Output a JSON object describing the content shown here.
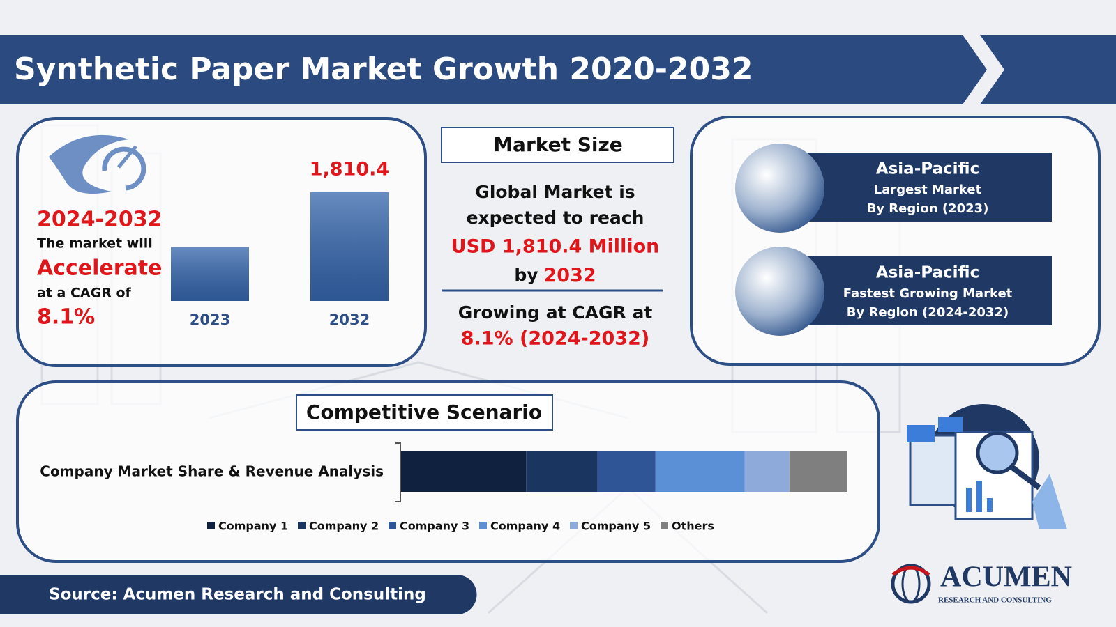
{
  "header": {
    "title": "Synthetic Paper Market Growth 2020-2032"
  },
  "growth_panel": {
    "period": "2024-2032",
    "line1": "The market will",
    "highlight": "Accelerate",
    "line2": "at a CAGR of",
    "cagr": "8.1%"
  },
  "market_size": {
    "heading": "Market Size",
    "line1": "Global Market is",
    "line2": "expected to reach",
    "amount": "USD 1,810.4 Million",
    "by": "by",
    "year": "2032",
    "line3": "Growing at CAGR at",
    "cagr": "8.1% (2024-2032)"
  },
  "regions": [
    {
      "name": "Asia-Pacific",
      "line1": "Largest Market",
      "line2": "By Region (2023)"
    },
    {
      "name": "Asia-Pacific",
      "line1": "Fastest Growing Market",
      "line2": "By Region (2024-2032)"
    }
  ],
  "competitive": {
    "heading": "Competitive Scenario"
  },
  "source": "Source: Acumen Research and Consulting",
  "logo": {
    "name": "ACUMEN",
    "tagline": "RESEARCH AND CONSULTING"
  },
  "chart_data": [
    {
      "type": "bar",
      "categories": [
        "2023",
        "2032"
      ],
      "values": [
        898,
        1810.4
      ],
      "value_labels": [
        null,
        "1,810.4"
      ],
      "color": "#3566ad"
    },
    {
      "type": "stacked-bar",
      "categories": [
        "Company Market Share & Revenue Analysis"
      ],
      "series": [
        {
          "name": "Company 1",
          "color": "#0f213f",
          "values": [
            28
          ]
        },
        {
          "name": "Company 2",
          "color": "#1b3561",
          "values": [
            16
          ]
        },
        {
          "name": "Company 3",
          "color": "#2f5597",
          "values": [
            13
          ]
        },
        {
          "name": "Company 4",
          "color": "#5b8fd6",
          "values": [
            20
          ]
        },
        {
          "name": "Company 5",
          "color": "#8eaadb",
          "values": [
            10
          ]
        },
        {
          "name": "Others",
          "color": "#7f7f7f",
          "values": [
            13
          ]
        }
      ]
    }
  ]
}
